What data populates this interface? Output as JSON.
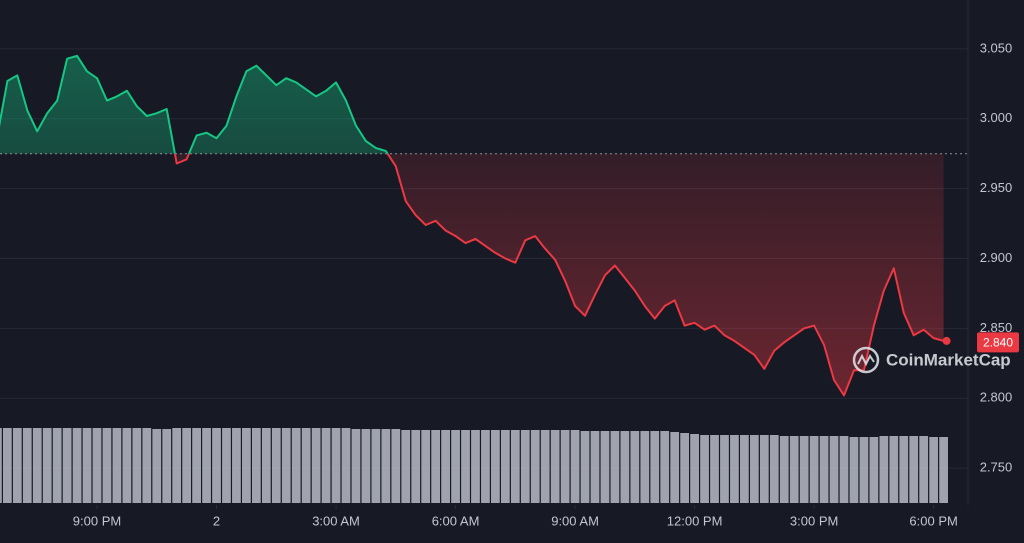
{
  "chart_data": {
    "type": "line",
    "up_color": "#16c784",
    "down_color": "#ea3943",
    "baseline": 2.975,
    "ylim": [
      2.725,
      3.085
    ],
    "yticks": [
      {
        "value": 2.75,
        "label": "2.750"
      },
      {
        "value": 2.8,
        "label": "2.800"
      },
      {
        "value": 2.85,
        "label": "2.850"
      },
      {
        "value": 2.9,
        "label": "2.900"
      },
      {
        "value": 2.95,
        "label": "2.950"
      },
      {
        "value": 3.0,
        "label": "3.000"
      },
      {
        "value": 3.05,
        "label": "3.050"
      }
    ],
    "xticks": [
      {
        "value": 10,
        "label": "9:00 PM"
      },
      {
        "value": 22,
        "label": "2"
      },
      {
        "value": 34,
        "label": "3:00 AM"
      },
      {
        "value": 46,
        "label": "6:00 AM"
      },
      {
        "value": 58,
        "label": "9:00 AM"
      },
      {
        "value": 70,
        "label": "12:00 PM"
      },
      {
        "value": 82,
        "label": "3:00 PM"
      },
      {
        "value": 94,
        "label": "6:00 PM"
      }
    ],
    "series": [
      {
        "values": [
          2.988,
          3.027,
          3.031,
          3.006,
          2.991,
          3.004,
          3.013,
          3.043,
          3.045,
          3.034,
          3.029,
          3.013,
          3.016,
          3.02,
          3.009,
          3.002,
          3.004,
          3.007,
          2.968,
          2.971,
          2.988,
          2.99,
          2.986,
          2.995,
          3.016,
          3.034,
          3.038,
          3.031,
          3.024,
          3.029,
          3.026,
          3.021,
          3.016,
          3.02,
          3.026,
          3.013,
          2.995,
          2.984,
          2.979,
          2.977,
          2.966,
          2.941,
          2.931,
          2.924,
          2.927,
          2.92,
          2.916,
          2.911,
          2.914,
          2.909,
          2.904,
          2.9,
          2.897,
          2.913,
          2.916,
          2.907,
          2.899,
          2.884,
          2.866,
          2.859,
          2.874,
          2.888,
          2.895,
          2.886,
          2.877,
          2.866,
          2.857,
          2.866,
          2.87,
          2.852,
          2.854,
          2.849,
          2.852,
          2.845,
          2.841,
          2.836,
          2.831,
          2.821,
          2.834,
          2.84,
          2.845,
          2.85,
          2.852,
          2.838,
          2.813,
          2.802,
          2.82,
          2.82,
          2.852,
          2.877,
          2.893,
          2.861,
          2.845,
          2.849,
          2.843,
          2.841
        ]
      }
    ],
    "volume": {
      "color": "#b8bcc6",
      "lim": [
        0,
        100
      ],
      "values": [
        75,
        75,
        75,
        75,
        75,
        75,
        75,
        75,
        75,
        75,
        75,
        75,
        75,
        75,
        75,
        75,
        74,
        74,
        75,
        75,
        75,
        75,
        75,
        75,
        75,
        75,
        75,
        75,
        75,
        75,
        75,
        75,
        75,
        75,
        75,
        75,
        74,
        74,
        74,
        74,
        74,
        73,
        73,
        73,
        73,
        73,
        73,
        73,
        73,
        73,
        73,
        73,
        73,
        73,
        73,
        73,
        73,
        73,
        73,
        72,
        72,
        72,
        72,
        72,
        72,
        72,
        72,
        72,
        71,
        70,
        69,
        68,
        68,
        68,
        68,
        68,
        68,
        68,
        68,
        67,
        67,
        67,
        67,
        67,
        67,
        67,
        66,
        66,
        66,
        67,
        67,
        67,
        67,
        67,
        66,
        66
      ]
    },
    "current_price": {
      "value": 2.84,
      "label": "2.840"
    },
    "watermark": "CoinMarketCap"
  }
}
